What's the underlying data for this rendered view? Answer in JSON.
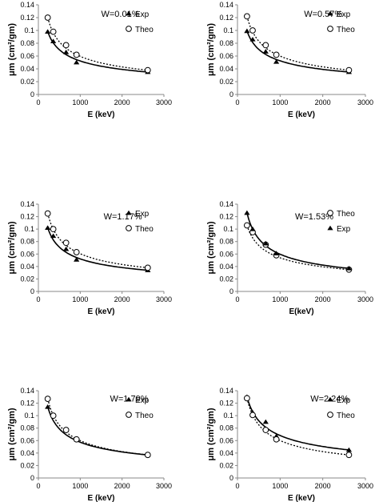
{
  "chart_data": [
    {
      "type": "scatter",
      "annotation": "W=0.01%",
      "xlabel": "E (keV)",
      "ylabel": "μm (cm²/gm)",
      "xlim": [
        0,
        3000
      ],
      "ylim": [
        0,
        0.14
      ],
      "x_ticks": [
        "0",
        "1000",
        "2000",
        "3000"
      ],
      "y_ticks": [
        "0",
        "0.02",
        "0.04",
        "0.06",
        "0.08",
        "0.1",
        "0.12",
        "0.14"
      ],
      "legend_position": "top-right",
      "series": [
        {
          "name": "Exp",
          "marker": "filled-triangle",
          "line": "solid",
          "x": [
            223,
            356,
            662,
            911,
            2614
          ],
          "y": [
            0.098,
            0.083,
            0.066,
            0.05,
            0.035
          ]
        },
        {
          "name": "Theo",
          "marker": "open-circle",
          "line": "dotted",
          "x": [
            223,
            356,
            662,
            911,
            2614
          ],
          "y": [
            0.12,
            0.098,
            0.077,
            0.062,
            0.038
          ]
        }
      ]
    },
    {
      "type": "scatter",
      "annotation": "W=0.57%",
      "xlabel": "E (keV)",
      "ylabel": "μm (cm²/gm)",
      "xlim": [
        0,
        3000
      ],
      "ylim": [
        0,
        0.14
      ],
      "x_ticks": [
        "0",
        "1000",
        "2000",
        "3000"
      ],
      "y_ticks": [
        "0",
        "0.02",
        "0.04",
        "0.06",
        "0.08",
        "0.1",
        "0.12",
        "0.14"
      ],
      "legend_position": "top-right",
      "series": [
        {
          "name": "Exp",
          "marker": "filled-triangle",
          "line": "solid",
          "x": [
            223,
            356,
            662,
            911,
            2614
          ],
          "y": [
            0.099,
            0.086,
            0.067,
            0.051,
            0.035
          ]
        },
        {
          "name": "Theo",
          "marker": "open-circle",
          "line": "dotted",
          "x": [
            223,
            356,
            662,
            911,
            2614
          ],
          "y": [
            0.122,
            0.1,
            0.077,
            0.062,
            0.038
          ]
        }
      ]
    },
    {
      "type": "scatter",
      "annotation": "W=1.17%",
      "xlabel": "E (keV)",
      "ylabel": "μm (cm²/gm)",
      "xlim": [
        0,
        3000
      ],
      "ylim": [
        0,
        0.14
      ],
      "x_ticks": [
        "0",
        "1000",
        "2000",
        "3000"
      ],
      "y_ticks": [
        "0",
        "0.02",
        "0.04",
        "0.06",
        "0.08",
        "0.1",
        "0.12",
        "0.14"
      ],
      "legend_position": "top-right",
      "series": [
        {
          "name": "Exp",
          "marker": "filled-triangle",
          "line": "solid",
          "x": [
            223,
            356,
            662,
            911,
            2614
          ],
          "y": [
            0.102,
            0.089,
            0.068,
            0.051,
            0.034
          ]
        },
        {
          "name": "Theo",
          "marker": "open-circle",
          "line": "dotted",
          "x": [
            223,
            356,
            662,
            911,
            2614
          ],
          "y": [
            0.125,
            0.1,
            0.078,
            0.063,
            0.038
          ]
        }
      ]
    },
    {
      "type": "scatter",
      "annotation": "W=1.53%",
      "xlabel": "E(keV)",
      "ylabel": "μm (cm²/gm)",
      "xlim": [
        0,
        3000
      ],
      "ylim": [
        0,
        0.14
      ],
      "x_ticks": [
        "0",
        "1000",
        "2000",
        "3000"
      ],
      "y_ticks": [
        "0",
        "0.02",
        "0.04",
        "0.06",
        "0.08",
        "0.1",
        "0.12",
        "0.14"
      ],
      "legend_position": "top-right",
      "series": [
        {
          "name": "Theo",
          "marker": "open-circle",
          "line": "dotted",
          "x": [
            223,
            356,
            662,
            911,
            2614
          ],
          "y": [
            0.106,
            0.095,
            0.075,
            0.058,
            0.035
          ]
        },
        {
          "name": "Exp",
          "marker": "filled-triangle",
          "line": "solid",
          "x": [
            223,
            356,
            662,
            911,
            2614
          ],
          "y": [
            0.126,
            0.1,
            0.077,
            0.061,
            0.037
          ]
        }
      ]
    },
    {
      "type": "scatter",
      "annotation": "W=1.79%",
      "xlabel": "E (keV)",
      "ylabel": "μm (cm²/gm)",
      "xlim": [
        0,
        3000
      ],
      "ylim": [
        0,
        0.14
      ],
      "x_ticks": [
        "0",
        "1000",
        "2000",
        "3000"
      ],
      "y_ticks": [
        "0",
        "0.02",
        "0.04",
        "0.06",
        "0.08",
        "0.1",
        "0.12",
        "0.14"
      ],
      "legend_position": "top-right",
      "series": [
        {
          "name": "Exp",
          "marker": "filled-triangle",
          "line": "solid",
          "x": [
            223,
            356,
            662,
            911,
            2614
          ],
          "y": [
            0.114,
            0.101,
            0.077,
            0.062,
            0.037
          ]
        },
        {
          "name": "Theo",
          "marker": "open-circle",
          "line": "dotted",
          "x": [
            223,
            356,
            662,
            911,
            2614
          ],
          "y": [
            0.127,
            0.1,
            0.077,
            0.062,
            0.037
          ]
        }
      ]
    },
    {
      "type": "scatter",
      "annotation": "W=2.24%",
      "xlabel": "E (keV)",
      "ylabel": "μm (cm²/gm)",
      "xlim": [
        0,
        3000
      ],
      "ylim": [
        0,
        0.14
      ],
      "x_ticks": [
        "0",
        "1000",
        "2000",
        "3000"
      ],
      "y_ticks": [
        "0",
        "0.02",
        "0.04",
        "0.06",
        "0.08",
        "0.1",
        "0.12",
        "0.14"
      ],
      "legend_position": "top-right",
      "series": [
        {
          "name": "Exp",
          "marker": "filled-triangle",
          "line": "solid",
          "x": [
            223,
            356,
            662,
            911,
            2614
          ],
          "y": [
            0.13,
            0.105,
            0.09,
            0.067,
            0.045
          ]
        },
        {
          "name": "Theo",
          "marker": "open-circle",
          "line": "dotted",
          "x": [
            223,
            356,
            662,
            911,
            2614
          ],
          "y": [
            0.128,
            0.101,
            0.077,
            0.062,
            0.037
          ]
        }
      ]
    }
  ]
}
